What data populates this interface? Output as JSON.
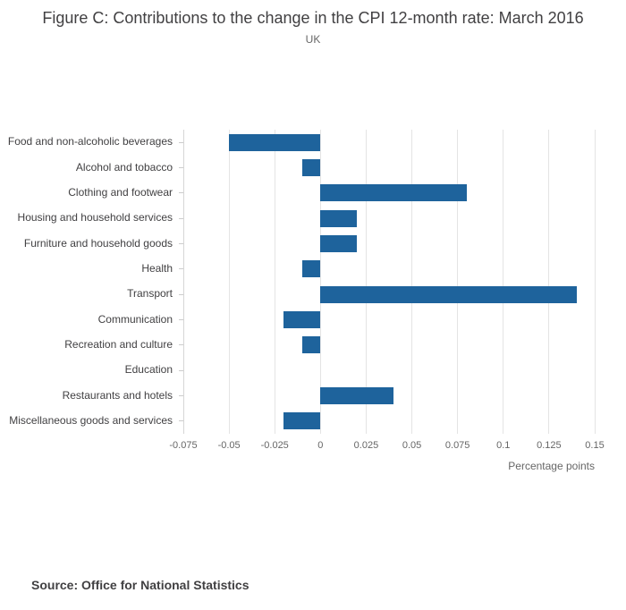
{
  "header": {
    "title": "Figure C: Contributions to the change in the CPI 12-month rate: March 2016",
    "subtitle": "UK"
  },
  "chart_data": {
    "type": "bar",
    "orientation": "horizontal",
    "title": "Figure C: Contributions to the change in the CPI 12-month rate: March 2016",
    "subtitle": "UK",
    "categories": [
      "Food and non-alcoholic beverages",
      "Alcohol and tobacco",
      "Clothing and footwear",
      "Housing and household services",
      "Furniture and household goods",
      "Health",
      "Transport",
      "Communication",
      "Recreation and culture",
      "Education",
      "Restaurants and hotels",
      "Miscellaneous goods and services"
    ],
    "values": [
      -0.05,
      -0.01,
      0.08,
      0.02,
      0.02,
      -0.01,
      0.14,
      -0.02,
      -0.01,
      0,
      0.04,
      -0.02
    ],
    "xlabel": "Percentage points",
    "xlim": [
      -0.075,
      0.15
    ],
    "xticks": [
      "-0.075",
      "-0.05",
      "-0.025",
      "0",
      "0.025",
      "0.05",
      "0.075",
      "0.1",
      "0.125",
      "0.15"
    ],
    "bar_color": "#1e639c",
    "grid": "vertical",
    "legend": "none"
  },
  "footer": {
    "source": "Source: Office for National Statistics"
  }
}
